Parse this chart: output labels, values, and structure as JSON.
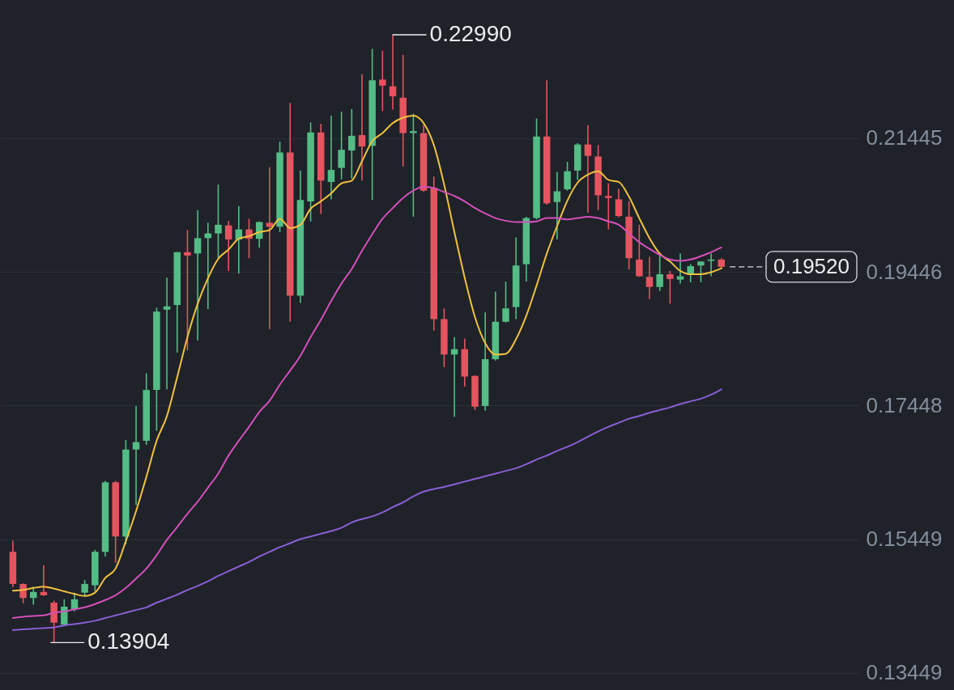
{
  "chart_data": {
    "type": "candlestick",
    "categories": [
      null,
      null,
      null,
      null,
      null,
      null,
      null,
      null,
      null,
      null,
      null,
      null,
      null,
      null,
      null,
      null,
      null,
      null,
      null,
      null,
      null,
      null,
      null,
      null,
      null,
      null,
      null,
      null,
      null,
      null,
      null,
      null,
      null,
      null,
      null,
      null,
      null,
      null,
      null,
      null,
      null,
      null,
      null,
      null,
      null,
      null,
      null,
      null,
      null,
      null,
      null,
      null,
      null,
      null,
      null,
      null,
      null,
      null,
      null,
      null,
      null,
      null,
      null,
      null,
      null,
      null,
      null,
      null,
      null,
      null
    ],
    "ohlc": [
      [
        0.1526,
        0.1543,
        0.1473,
        0.1478
      ],
      [
        0.1478,
        0.1479,
        0.1449,
        0.1457
      ],
      [
        0.1457,
        0.1474,
        0.1447,
        0.1466
      ],
      [
        0.1466,
        0.1506,
        0.146,
        0.1461
      ],
      [
        0.145,
        0.1453,
        0.13904,
        0.142
      ],
      [
        0.1417,
        0.1455,
        0.1415,
        0.1444
      ],
      [
        0.144,
        0.1465,
        0.1437,
        0.1455
      ],
      [
        0.1465,
        0.1484,
        0.146,
        0.1478
      ],
      [
        0.1476,
        0.1529,
        0.1467,
        0.1526
      ],
      [
        0.1526,
        0.1632,
        0.1519,
        0.163
      ],
      [
        0.163,
        0.1632,
        0.151,
        0.1549
      ],
      [
        0.1549,
        0.1693,
        0.1537,
        0.1679
      ],
      [
        0.1679,
        0.1744,
        0.1596,
        0.169
      ],
      [
        0.1692,
        0.1793,
        0.1686,
        0.1768
      ],
      [
        0.1768,
        0.1891,
        0.1707,
        0.1885
      ],
      [
        0.1888,
        0.1936,
        0.1769,
        0.1893
      ],
      [
        0.1895,
        0.1974,
        0.1824,
        0.1974
      ],
      [
        0.1974,
        0.2007,
        0.1827,
        0.1969
      ],
      [
        0.1972,
        0.2037,
        0.1842,
        0.1995
      ],
      [
        0.1995,
        0.2018,
        0.1889,
        0.2002
      ],
      [
        0.2002,
        0.2075,
        0.1965,
        0.2015
      ],
      [
        0.2014,
        0.2021,
        0.1946,
        0.1993
      ],
      [
        0.1993,
        0.2043,
        0.1942,
        0.2008
      ],
      [
        0.2008,
        0.2024,
        0.1965,
        0.1994
      ],
      [
        0.1994,
        0.202,
        0.1981,
        0.2019
      ],
      [
        0.2018,
        0.2101,
        0.1859,
        0.2012
      ],
      [
        0.2012,
        0.2139,
        0.2004,
        0.2123
      ],
      [
        0.2123,
        0.2197,
        0.187,
        0.1909
      ],
      [
        0.1909,
        0.2096,
        0.1898,
        0.2052
      ],
      [
        0.205,
        0.2168,
        0.202,
        0.2153
      ],
      [
        0.2153,
        0.2166,
        0.2031,
        0.2081
      ],
      [
        0.2079,
        0.2178,
        0.2053,
        0.2097
      ],
      [
        0.21,
        0.2184,
        0.2083,
        0.2127
      ],
      [
        0.2126,
        0.2188,
        0.2084,
        0.2148
      ],
      [
        0.2149,
        0.224,
        0.2081,
        0.2132
      ],
      [
        0.2133,
        0.2278,
        0.2052,
        0.2231
      ],
      [
        0.2232,
        0.2275,
        0.2185,
        0.2223
      ],
      [
        0.2222,
        0.2299,
        0.2187,
        0.2207
      ],
      [
        0.2205,
        0.2269,
        0.2102,
        0.2152
      ],
      [
        0.2152,
        0.2181,
        0.2027,
        0.2155
      ],
      [
        0.2152,
        0.2164,
        0.2064,
        0.2066
      ],
      [
        0.207,
        0.2087,
        0.1857,
        0.1874
      ],
      [
        0.1874,
        0.189,
        0.1802,
        0.1821
      ],
      [
        0.1821,
        0.1847,
        0.1728,
        0.1829
      ],
      [
        0.1829,
        0.1845,
        0.1773,
        0.1788
      ],
      [
        0.1789,
        0.179,
        0.1738,
        0.1743
      ],
      [
        0.1744,
        0.1884,
        0.1737,
        0.1814
      ],
      [
        0.1814,
        0.1915,
        0.1812,
        0.187
      ],
      [
        0.187,
        0.193,
        0.1869,
        0.189
      ],
      [
        0.1892,
        0.1996,
        0.1874,
        0.1954
      ],
      [
        0.1956,
        0.2027,
        0.193,
        0.2025
      ],
      [
        0.2025,
        0.2174,
        0.2023,
        0.2147
      ],
      [
        0.2147,
        0.2231,
        0.2045,
        0.2047
      ],
      [
        0.2049,
        0.2094,
        0.1993,
        0.2065
      ],
      [
        0.2068,
        0.2109,
        0.2066,
        0.2095
      ],
      [
        0.2096,
        0.2137,
        0.2082,
        0.2135
      ],
      [
        0.2135,
        0.2164,
        0.2033,
        0.2118
      ],
      [
        0.2117,
        0.2134,
        0.2037,
        0.2059
      ],
      [
        0.2058,
        0.2077,
        0.2008,
        0.2055
      ],
      [
        0.2053,
        0.2069,
        0.2026,
        0.2028
      ],
      [
        0.2027,
        0.205,
        0.1948,
        0.1965
      ],
      [
        0.1963,
        0.2015,
        0.1937,
        0.1938
      ],
      [
        0.1937,
        0.1967,
        0.1904,
        0.1922
      ],
      [
        0.1922,
        0.1972,
        0.1916,
        0.1941
      ],
      [
        0.1941,
        0.1946,
        0.1897,
        0.1934
      ],
      [
        0.1933,
        0.1972,
        0.1927,
        0.1938
      ],
      [
        0.194,
        0.1956,
        0.1929,
        0.1953
      ],
      [
        0.1954,
        0.196,
        0.1929,
        0.196
      ],
      [
        0.1961,
        0.1972,
        0.1938,
        0.1963
      ],
      [
        0.1963,
        0.1965,
        0.195,
        0.1952
      ]
    ],
    "colors": [
      "#e5545f",
      "#e5545f",
      "#53bd85",
      "#e5545f",
      "#e5545f",
      "#53bd85",
      "#53bd85",
      "#53bd85",
      "#53bd85",
      "#53bd85",
      "#e5545f",
      "#53bd85",
      "#53bd85",
      "#53bd85",
      "#53bd85",
      "#53bd85",
      "#53bd85",
      "#e5545f",
      "#53bd85",
      "#53bd85",
      "#53bd85",
      "#e5545f",
      "#53bd85",
      "#e5545f",
      "#53bd85",
      "#e5545f",
      "#53bd85",
      "#e5545f",
      "#53bd85",
      "#53bd85",
      "#e5545f",
      "#53bd85",
      "#53bd85",
      "#53bd85",
      "#e5545f",
      "#53bd85",
      "#e5545f",
      "#e5545f",
      "#e5545f",
      "#53bd85",
      "#e5545f",
      "#e5545f",
      "#e5545f",
      "#53bd85",
      "#e5545f",
      "#e5545f",
      "#53bd85",
      "#53bd85",
      "#53bd85",
      "#53bd85",
      "#53bd85",
      "#53bd85",
      "#e5545f",
      "#53bd85",
      "#53bd85",
      "#53bd85",
      "#e5545f",
      "#e5545f",
      "#e5545f",
      "#e5545f",
      "#e5545f",
      "#e5545f",
      "#e5545f",
      "#53bd85",
      "#e5545f",
      "#53bd85",
      "#53bd85",
      "#53bd85",
      "#53bd85",
      "#e5545f"
    ],
    "series": [
      {
        "type": "line",
        "color": "#f0c13f",
        "values": [
          0.1468,
          0.1469,
          0.1472,
          0.1474,
          0.1471,
          0.1467,
          0.1463,
          0.146,
          0.1465,
          0.1487,
          0.1501,
          0.1542,
          0.1587,
          0.1638,
          0.1692,
          0.1729,
          0.1787,
          0.1847,
          0.1897,
          0.1935,
          0.1964,
          0.1978,
          0.1994,
          0.1998,
          0.2004,
          0.2007,
          0.2024,
          0.201,
          0.2015,
          0.2039,
          0.205,
          0.2062,
          0.2077,
          0.2081,
          0.211,
          0.214,
          0.2152,
          0.2167,
          0.2175,
          0.2178,
          0.2167,
          0.2134,
          0.2075,
          0.2004,
          0.1936,
          0.1877,
          0.1838,
          0.1821,
          0.1822,
          0.1844,
          0.1879,
          0.1924,
          0.1972,
          0.2013,
          0.2051,
          0.2078,
          0.209,
          0.2095,
          0.2082,
          0.2079,
          0.2057,
          0.2025,
          0.1995,
          0.1972,
          0.196,
          0.1946,
          0.1941,
          0.1941,
          0.1944,
          0.195
        ]
      },
      {
        "type": "line",
        "color": "#d44fba",
        "values": [
          0.1427,
          0.1429,
          0.143,
          0.1431,
          0.1435,
          0.1437,
          0.144,
          0.1443,
          0.1448,
          0.1454,
          0.1461,
          0.1472,
          0.1486,
          0.1501,
          0.1521,
          0.1544,
          0.1563,
          0.1583,
          0.1601,
          0.1622,
          0.1643,
          0.167,
          0.1692,
          0.1713,
          0.1735,
          0.1752,
          0.1776,
          0.1797,
          0.1819,
          0.1847,
          0.1873,
          0.1901,
          0.1927,
          0.1949,
          0.1976,
          0.2001,
          0.2024,
          0.204,
          0.2055,
          0.2066,
          0.2072,
          0.207,
          0.2064,
          0.2058,
          0.205,
          0.204,
          0.2032,
          0.2025,
          0.2021,
          0.2019,
          0.2019,
          0.202,
          0.2025,
          0.2025,
          0.2023,
          0.2025,
          0.2027,
          0.2025,
          0.202,
          0.2015,
          0.2002,
          0.1989,
          0.1979,
          0.197,
          0.1963,
          0.1961,
          0.1963,
          0.1968,
          0.1974,
          0.1981
        ]
      },
      {
        "type": "line",
        "color": "#8a5ed6",
        "values": [
          0.1409,
          0.141,
          0.1411,
          0.1412,
          0.1413,
          0.1416,
          0.1418,
          0.142,
          0.1423,
          0.1427,
          0.1431,
          0.1435,
          0.1439,
          0.1443,
          0.145,
          0.1456,
          0.1462,
          0.1469,
          0.1475,
          0.1482,
          0.149,
          0.1497,
          0.1504,
          0.1511,
          0.1519,
          0.1526,
          0.1533,
          0.1539,
          0.1545,
          0.1549,
          0.1553,
          0.1557,
          0.1562,
          0.157,
          0.1575,
          0.1579,
          0.1585,
          0.1593,
          0.16,
          0.1609,
          0.1616,
          0.162,
          0.1623,
          0.1627,
          0.1631,
          0.1635,
          0.1639,
          0.1643,
          0.1647,
          0.1651,
          0.1657,
          0.1664,
          0.167,
          0.1677,
          0.1683,
          0.169,
          0.1698,
          0.1706,
          0.1713,
          0.1719,
          0.1725,
          0.1729,
          0.1734,
          0.1738,
          0.1742,
          0.1747,
          0.1751,
          0.1755,
          0.1761,
          0.1769
        ]
      }
    ],
    "ylim": [
      0.134,
      0.2351
    ],
    "yticks": [
      0.13449,
      0.15449,
      0.17448,
      0.19446,
      0.21445
    ],
    "grid": "y",
    "tick_labels": "y",
    "ref_lines": [
      {
        "axis": "y",
        "value": 0.1952,
        "label": "0.19520",
        "color": "#d8dade",
        "line_style": "dashed"
      }
    ],
    "annotations": [
      "0.22990",
      "0.13904"
    ]
  }
}
